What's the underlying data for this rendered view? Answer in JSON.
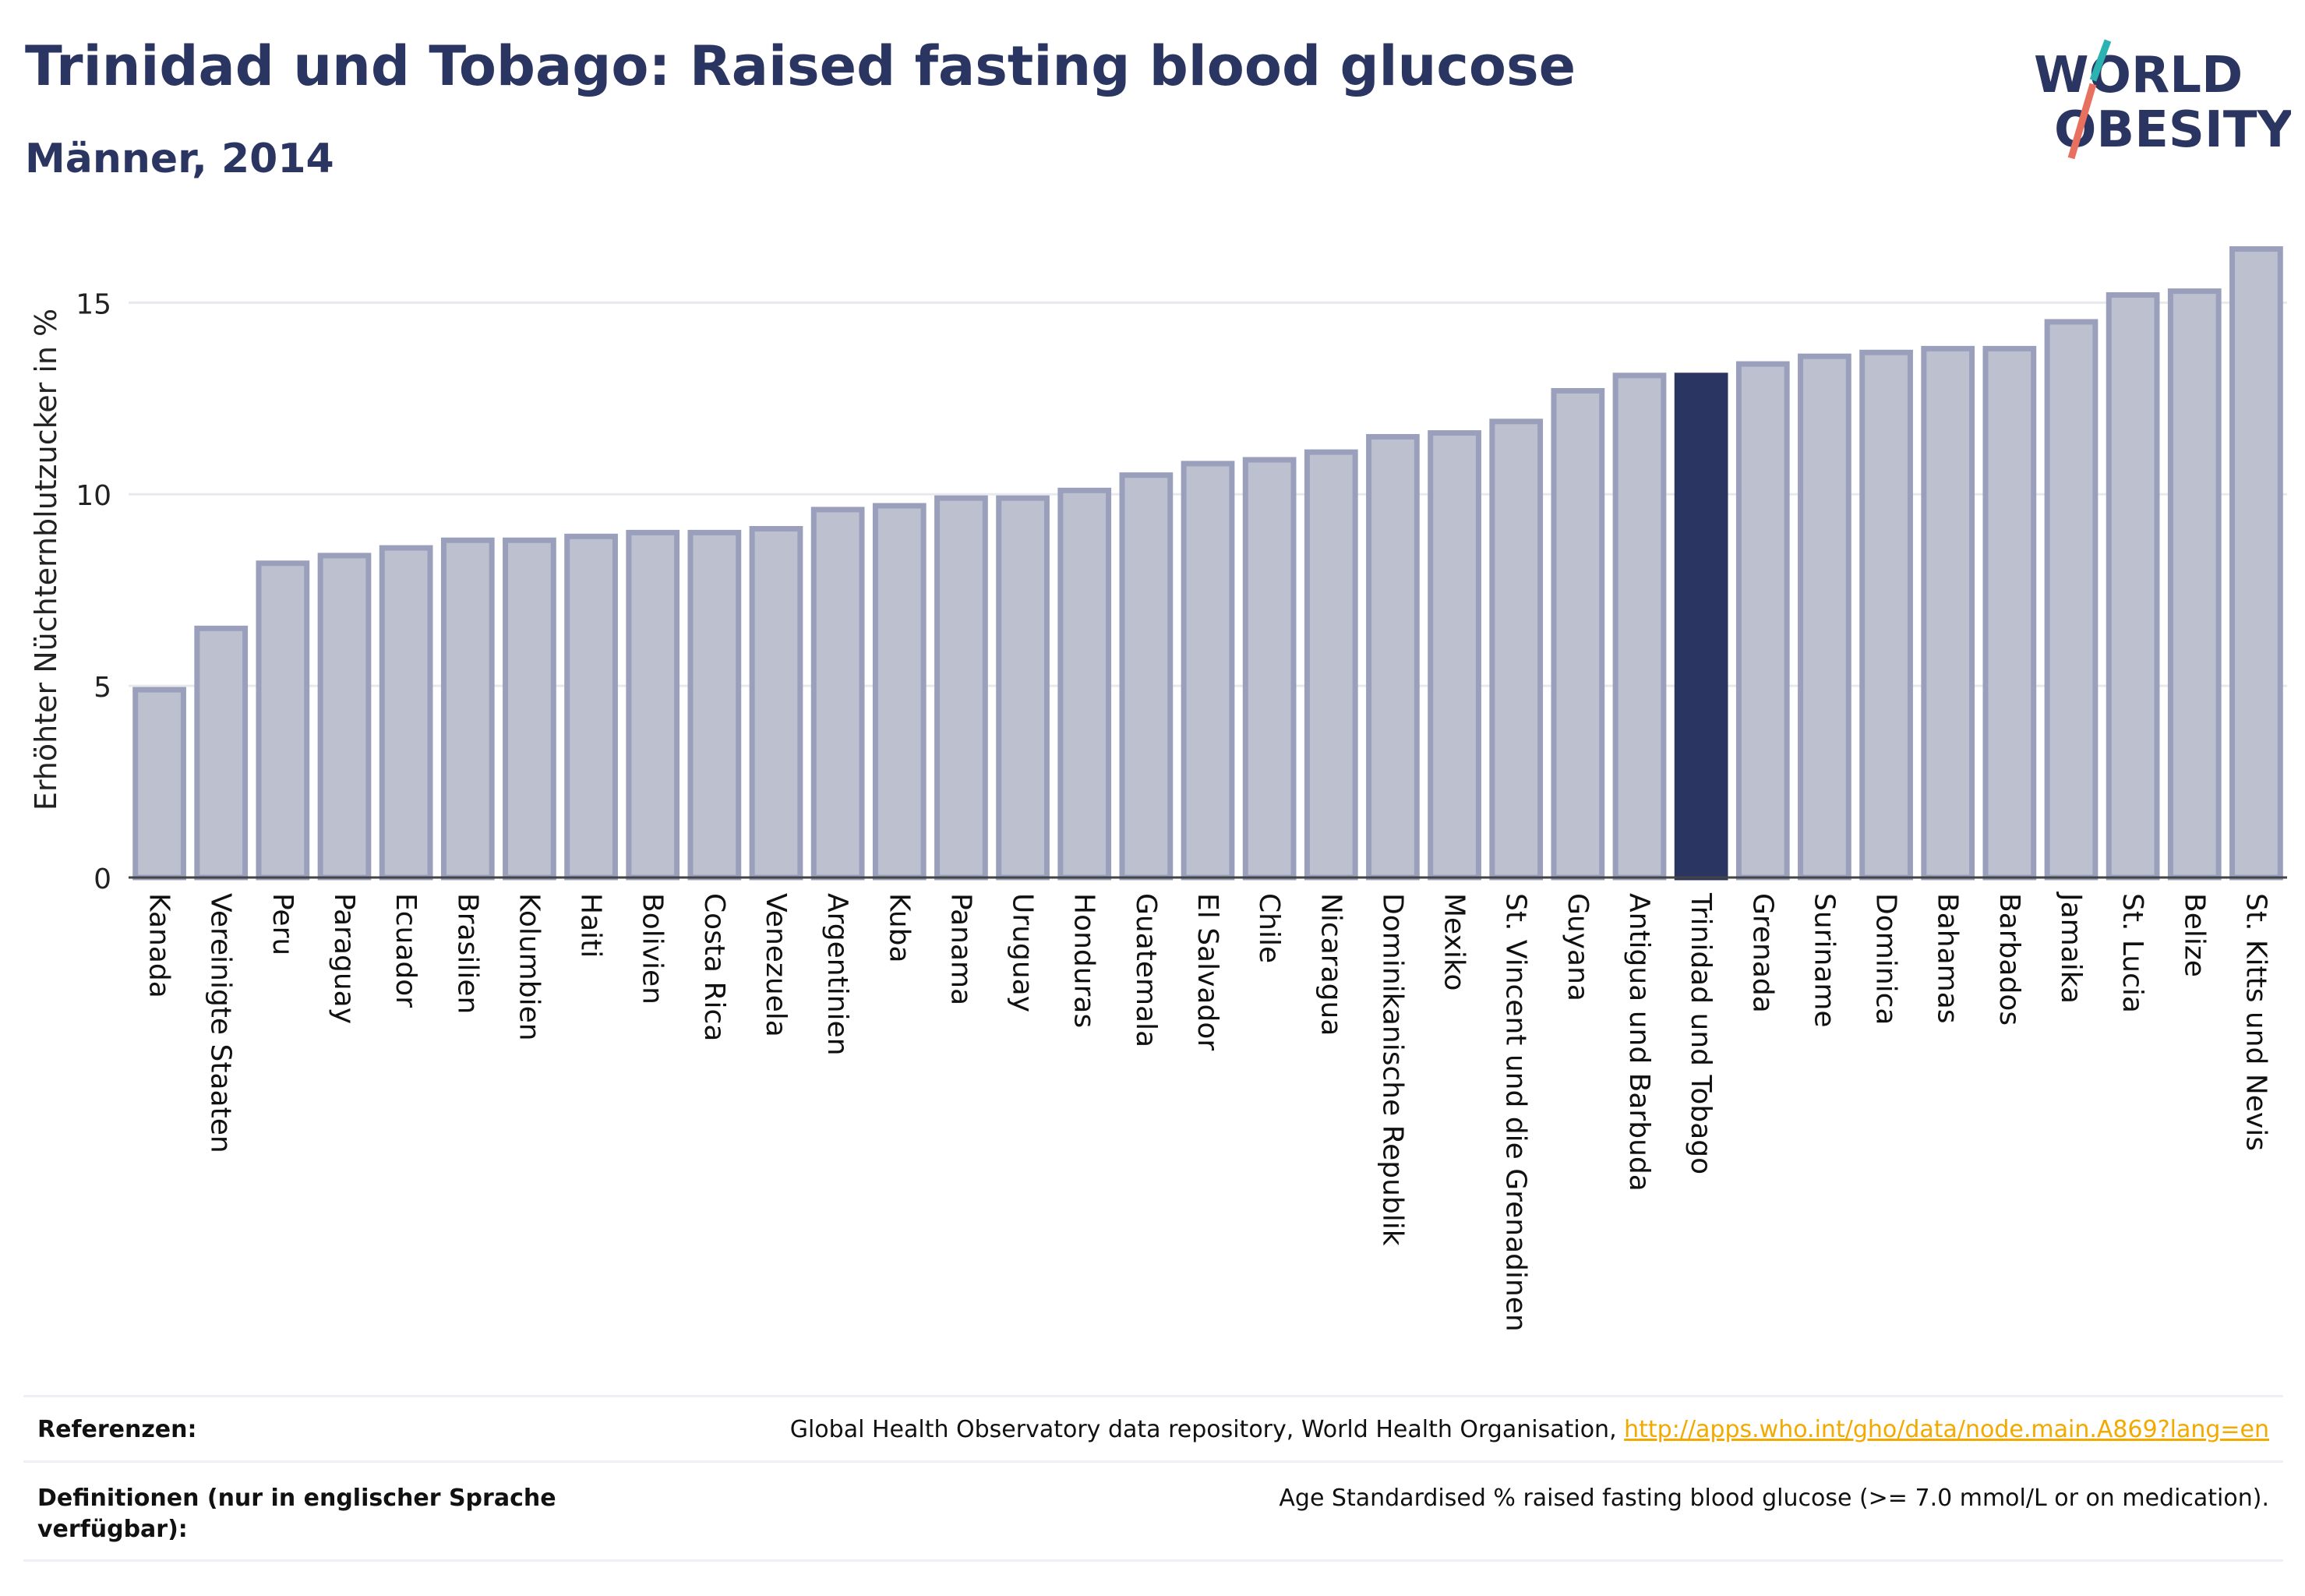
{
  "header": {
    "title": "Trinidad und Tobago: Raised fasting blood glucose",
    "subtitle": "Männer, 2014"
  },
  "logo": {
    "line1": "WORLD",
    "line2": "OBESITY",
    "accent_teal": "#2ab3b1",
    "accent_coral": "#e8705f"
  },
  "colors": {
    "bar": "#bcc0cf",
    "bar_border": "#9aa0bc",
    "highlight": "#2b3561",
    "text": "#2b3561",
    "grid": "#e8e9ef"
  },
  "chart_data": {
    "type": "bar",
    "ylabel": "Erhöhter Nüchternblutzucker in %",
    "ylim": [
      0,
      17
    ],
    "yticks": [
      0,
      5,
      10,
      15
    ],
    "grid": true,
    "highlight": "Trinidad und Tobago",
    "categories": [
      "Kanada",
      "Vereinigte Staaten",
      "Peru",
      "Paraguay",
      "Ecuador",
      "Brasilien",
      "Kolumbien",
      "Haiti",
      "Bolivien",
      "Costa Rica",
      "Venezuela",
      "Argentinien",
      "Kuba",
      "Panama",
      "Uruguay",
      "Honduras",
      "Guatemala",
      "El Salvador",
      "Chile",
      "Nicaragua",
      "Dominikanische Republik",
      "Mexiko",
      "St. Vincent und die Grenadinen",
      "Guyana",
      "Antigua und Barbuda",
      "Trinidad und Tobago",
      "Grenada",
      "Suriname",
      "Dominica",
      "Bahamas",
      "Barbados",
      "Jamaika",
      "St. Lucia",
      "Belize",
      "St. Kitts und Nevis"
    ],
    "values": [
      4.9,
      6.5,
      8.2,
      8.4,
      8.6,
      8.8,
      8.8,
      8.9,
      9.0,
      9.0,
      9.1,
      9.6,
      9.7,
      9.9,
      9.9,
      10.1,
      10.5,
      10.8,
      10.9,
      11.1,
      11.5,
      11.6,
      11.9,
      12.7,
      13.1,
      13.1,
      13.4,
      13.6,
      13.7,
      13.8,
      13.8,
      14.5,
      15.2,
      15.3,
      16.4
    ]
  },
  "references": {
    "ref_label": "Referenzen:",
    "ref_text": "Global Health Observatory data repository, World Health Organisation, ",
    "ref_link": "http://apps.who.int/gho/data/node.main.A869?lang=en",
    "def_label": "Definitionen (nur in englischer Sprache verfügbar):",
    "def_text": "Age Standardised % raised fasting blood glucose (>= 7.0 mmol/L or on medication)."
  }
}
